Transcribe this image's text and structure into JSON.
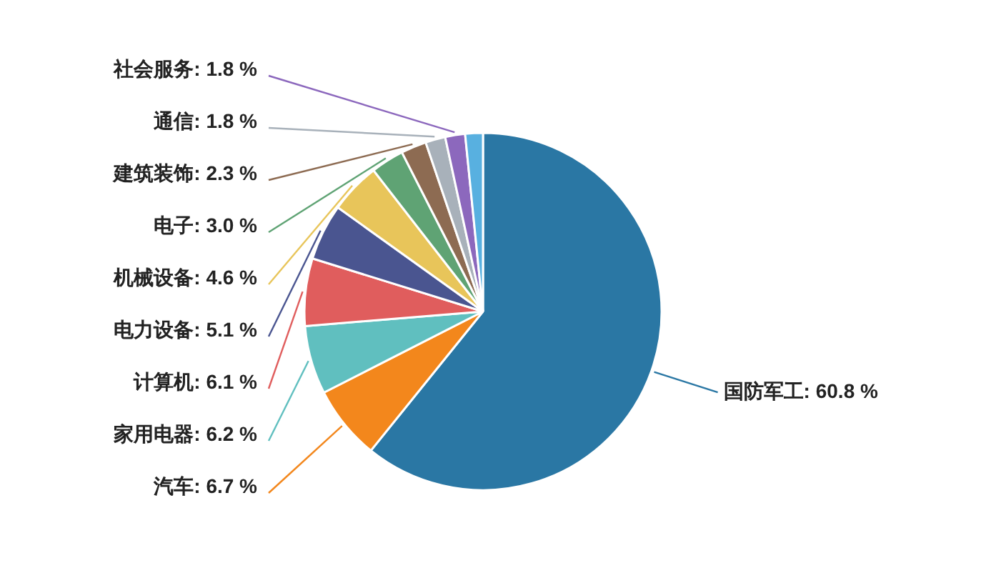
{
  "chart_data": {
    "type": "pie",
    "categories": [
      "国防军工",
      "汽车",
      "家用电器",
      "计算机",
      "电力设备",
      "机械设备",
      "电子",
      "建筑装饰",
      "通信",
      "社会服务",
      null
    ],
    "values": [
      60.8,
      6.7,
      6.2,
      6.1,
      5.1,
      4.6,
      3.0,
      2.3,
      1.8,
      1.8,
      1.6
    ],
    "value_labels": [
      "60.8 %",
      "6.7 %",
      "6.2 %",
      "6.1 %",
      "5.1 %",
      "4.6 %",
      "3.0 %",
      "2.3 %",
      "1.8 %",
      "1.8 %",
      null
    ],
    "colors": [
      "#2a77a4",
      "#f3871c",
      "#60bfbf",
      "#e05d5d",
      "#4a5590",
      "#e8c55a",
      "#5fa374",
      "#8d6b52",
      "#a8b1ba",
      "#8c68bd",
      "#58b0e0"
    ]
  }
}
